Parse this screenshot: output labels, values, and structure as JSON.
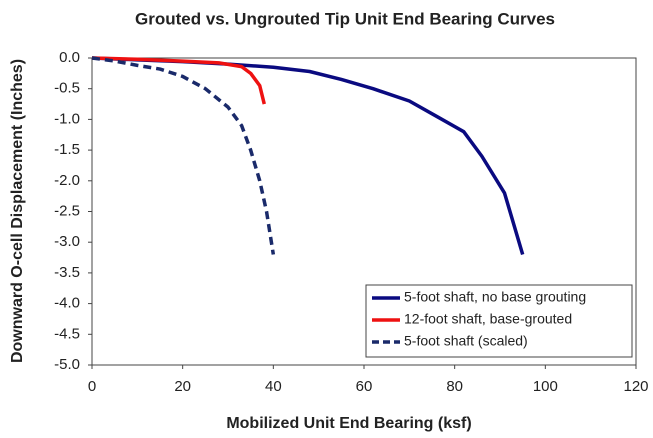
{
  "chart_data": {
    "type": "line",
    "title": "Grouted vs. Ungrouted Tip Unit End Bearing Curves",
    "x_label": "Mobilized Unit End Bearing (ksf)",
    "y_label": "Downward O-cell Displacement (Inches)",
    "xlim": [
      0,
      120
    ],
    "xticks": [
      0,
      20,
      40,
      60,
      80,
      100,
      120
    ],
    "ylim": [
      -5,
      0
    ],
    "yticks": [
      {
        "value": 0,
        "label": "0.0"
      },
      -0.5,
      {
        "value": -1,
        "label": "-1.0"
      },
      -1.5,
      {
        "value": -2,
        "label": "-2.0"
      },
      -2.5,
      {
        "value": -3,
        "label": "-3.0"
      },
      -3.5,
      {
        "value": -4,
        "label": "-4.0"
      },
      -4.5,
      {
        "value": -5,
        "label": "-5.0"
      }
    ],
    "legend": "lower right",
    "series": [
      {
        "name": "5-foot shaft, no base grouting",
        "color": "#0a0a80",
        "dash": false,
        "x": [
          0,
          10,
          20,
          30,
          40,
          48,
          55,
          62,
          70,
          76,
          82,
          86,
          91,
          95
        ],
        "values": [
          0,
          -0.03,
          -0.06,
          -0.1,
          -0.15,
          -0.22,
          -0.35,
          -0.5,
          -0.7,
          -0.95,
          -1.2,
          -1.6,
          -2.2,
          -3.2
        ]
      },
      {
        "name": "12-foot shaft, base-grouted",
        "color": "#ee1111",
        "dash": false,
        "x": [
          0,
          10,
          20,
          28,
          33,
          35,
          37,
          38
        ],
        "values": [
          0,
          -0.02,
          -0.05,
          -0.08,
          -0.14,
          -0.25,
          -0.45,
          -0.75
        ]
      },
      {
        "name": "5-foot shaft (scaled)",
        "color": "#1a2a6a",
        "dash": true,
        "x": [
          0,
          5,
          10,
          15,
          20,
          25,
          30,
          33,
          35,
          37,
          38.5,
          40
        ],
        "values": [
          0,
          -0.05,
          -0.12,
          -0.18,
          -0.3,
          -0.5,
          -0.8,
          -1.1,
          -1.5,
          -2,
          -2.5,
          -3.2
        ]
      }
    ]
  }
}
